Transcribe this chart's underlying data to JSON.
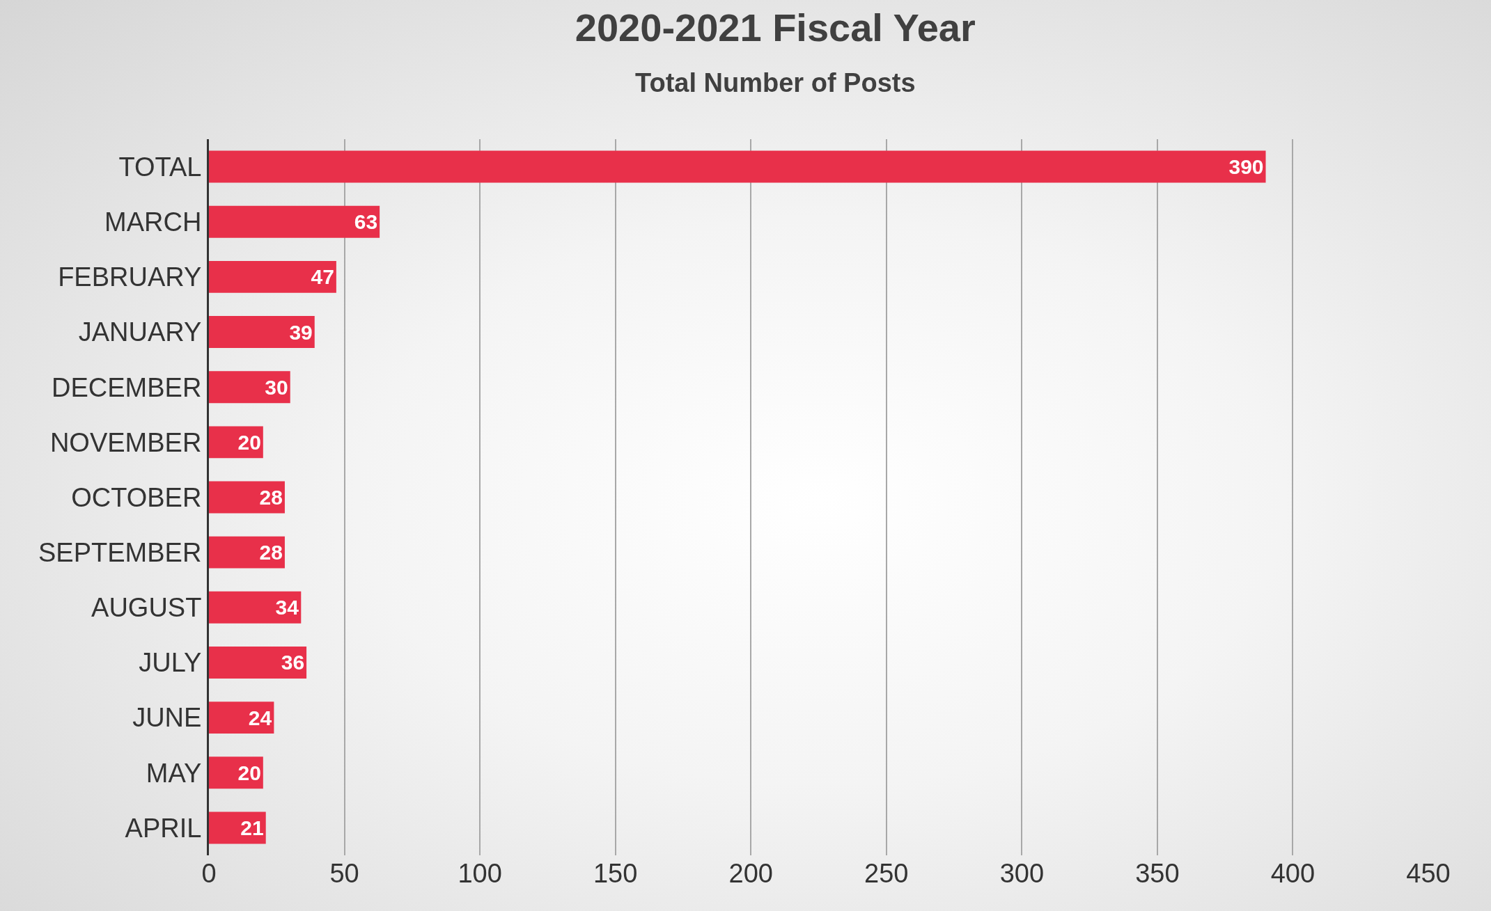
{
  "chart_data": {
    "type": "bar",
    "orientation": "horizontal",
    "title": "2020-2021 Fiscal Year",
    "subtitle": "Total Number of Posts",
    "categories": [
      "TOTAL",
      "MARCH",
      "FEBRUARY",
      "JANUARY",
      "DECEMBER",
      "NOVEMBER",
      "OCTOBER",
      "SEPTEMBER",
      "AUGUST",
      "JULY",
      "JUNE",
      "MAY",
      "APRIL"
    ],
    "values": [
      390,
      63,
      47,
      39,
      30,
      20,
      28,
      28,
      34,
      36,
      24,
      20,
      21
    ],
    "color": "#e8304a",
    "xlim": [
      0,
      450
    ],
    "xticks": [
      0,
      50,
      100,
      150,
      200,
      250,
      300,
      350,
      400,
      450
    ],
    "grid": "x",
    "data_labels": true
  }
}
